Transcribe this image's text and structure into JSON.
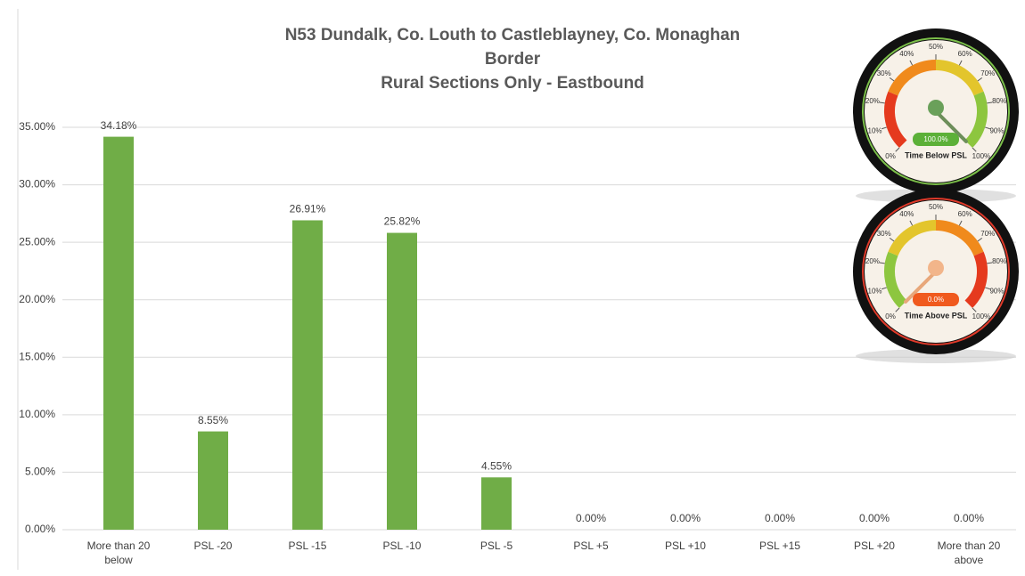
{
  "chart_data": {
    "type": "bar",
    "title": [
      "N53 Dundalk, Co. Louth to Castleblayney, Co. Monaghan",
      "Border",
      "Rural Sections Only - Eastbound"
    ],
    "categories": [
      "More than 20 below",
      "PSL -20",
      "PSL -15",
      "PSL -10",
      "PSL -5",
      "PSL +5",
      "PSL +10",
      "PSL +15",
      "PSL +20",
      "More than 20 above"
    ],
    "values": [
      34.18,
      8.55,
      26.91,
      25.82,
      4.55,
      0,
      0,
      0,
      0,
      0
    ],
    "value_labels": [
      "34.18%",
      "8.55%",
      "26.91%",
      "25.82%",
      "4.55%",
      "0.00%",
      "0.00%",
      "0.00%",
      "0.00%",
      "0.00%"
    ],
    "color": "#70ad47",
    "ylim": [
      0,
      35
    ],
    "yticks": [
      {
        "value": 0,
        "label": "0.00%"
      },
      {
        "value": 5,
        "label": "5.00%"
      },
      {
        "value": 10,
        "label": "10.00%"
      },
      {
        "value": 15,
        "label": "15.00%"
      },
      {
        "value": 20,
        "label": "20.00%"
      },
      {
        "value": 25,
        "label": "25.00%"
      },
      {
        "value": 30,
        "label": "30.00%"
      },
      {
        "value": 35,
        "label": "35.00%"
      }
    ],
    "grid": true
  },
  "gauges": [
    {
      "title": "Time Below PSL",
      "value": 100,
      "value_label": "100.0%",
      "pill_color": "#5cb038",
      "ring_color": "#7cc04a",
      "arc_colors": [
        "#e53a1e",
        "#f08a1c",
        "#e3c52c",
        "#8dc63f"
      ],
      "ticks": [
        {
          "value": 0,
          "label": "0%"
        },
        {
          "value": 10,
          "label": "10%"
        },
        {
          "value": 20,
          "label": "20%"
        },
        {
          "value": 30,
          "label": "30%"
        },
        {
          "value": 40,
          "label": "40%"
        },
        {
          "value": 50,
          "label": "50%"
        },
        {
          "value": 60,
          "label": "60%"
        },
        {
          "value": 70,
          "label": "70%"
        },
        {
          "value": 80,
          "label": "80%"
        },
        {
          "value": 90,
          "label": "90%"
        },
        {
          "value": 100,
          "label": "100%"
        }
      ]
    },
    {
      "title": "Time Above PSL",
      "value": 0,
      "value_label": "0.0%",
      "pill_color": "#f05a1e",
      "ring_color": "#e03a2a",
      "arc_colors": [
        "#8dc63f",
        "#e3c52c",
        "#f08a1c",
        "#e53a1e"
      ],
      "ticks": [
        {
          "value": 0,
          "label": "0%"
        },
        {
          "value": 10,
          "label": "10%"
        },
        {
          "value": 20,
          "label": "20%"
        },
        {
          "value": 30,
          "label": "30%"
        },
        {
          "value": 40,
          "label": "40%"
        },
        {
          "value": 50,
          "label": "50%"
        },
        {
          "value": 60,
          "label": "60%"
        },
        {
          "value": 70,
          "label": "70%"
        },
        {
          "value": 80,
          "label": "80%"
        },
        {
          "value": 90,
          "label": "90%"
        },
        {
          "value": 100,
          "label": "100%"
        }
      ]
    }
  ]
}
